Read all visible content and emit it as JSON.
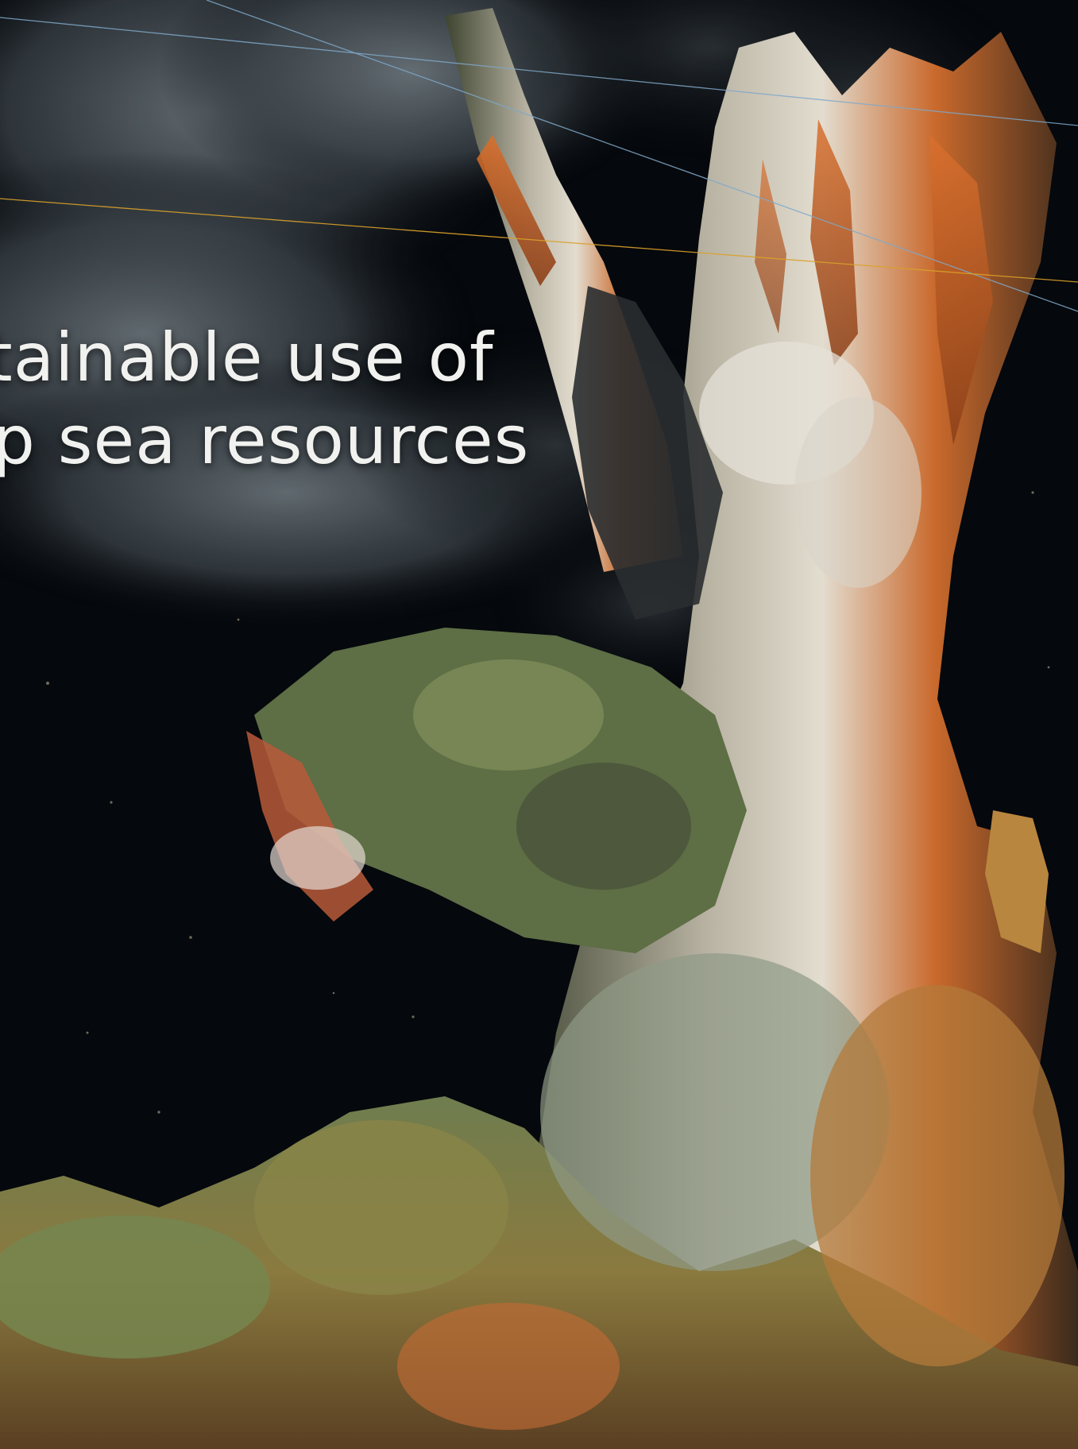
{
  "colors": {
    "background": "#05080c",
    "smoke": "#59636a",
    "chimney_orange": "#c85a23",
    "chimney_white": "#ddd8cc",
    "chimney_green": "#6b7a4d",
    "headline_text": "#f1f2ef",
    "guide_line_blue": "#7fa8c9",
    "guide_line_gold": "#d9a12a"
  },
  "headline": {
    "line1": "stainable use of",
    "line2": "ep sea resources"
  },
  "image": {
    "subject_icon": "hydrothermal-vent-photo"
  }
}
